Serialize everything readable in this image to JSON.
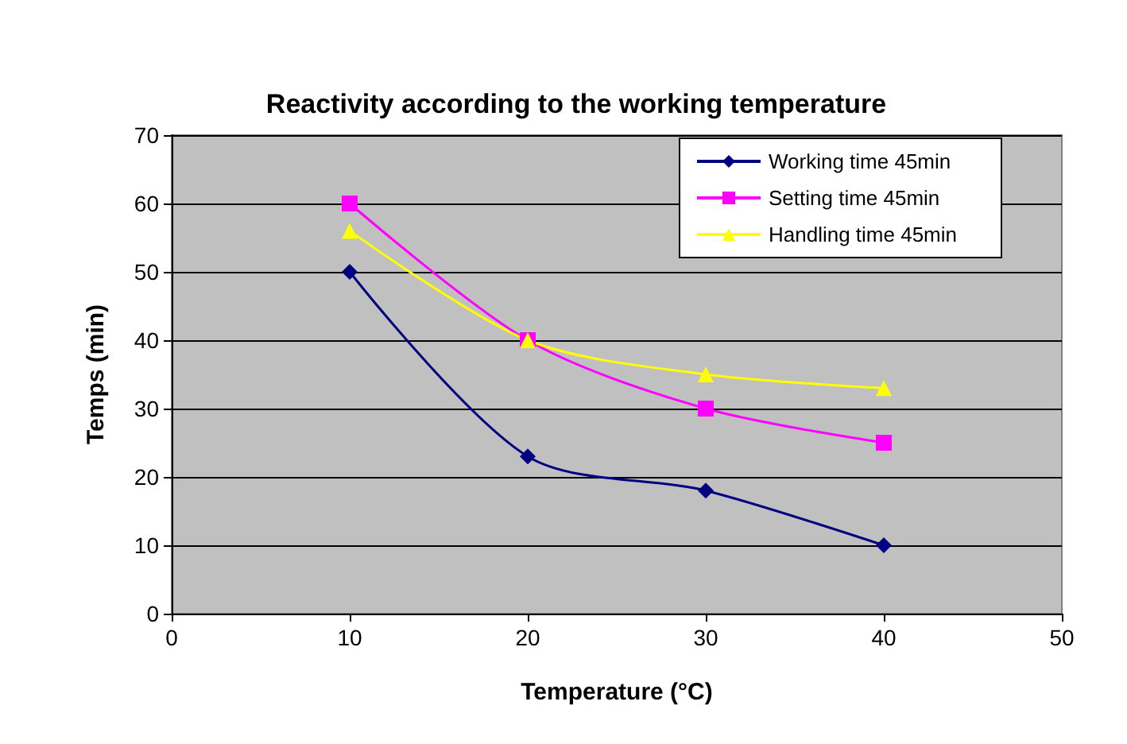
{
  "chart_data": {
    "type": "line",
    "title": "Reactivity according to the working temperature",
    "xlabel": "Temperature (°C)",
    "ylabel": "Temps (min)",
    "x": [
      10,
      20,
      30,
      40
    ],
    "xlim": [
      0,
      50
    ],
    "xticks": [
      0,
      10,
      20,
      30,
      40,
      50
    ],
    "ylim": [
      0,
      70
    ],
    "yticks": [
      0,
      10,
      20,
      30,
      40,
      50,
      60,
      70
    ],
    "grid": "y",
    "legend": "top right",
    "series": [
      {
        "name": "Working time 45min",
        "color": "#000080",
        "marker": "diamond",
        "values": [
          50,
          23,
          18,
          10
        ]
      },
      {
        "name": "Setting time 45min",
        "color": "#ff00ff",
        "marker": "square",
        "values": [
          60,
          40,
          30,
          25
        ]
      },
      {
        "name": "Handling time 45min",
        "color": "#ffff00",
        "marker": "triangle",
        "values": [
          56,
          40,
          35,
          33
        ]
      }
    ]
  }
}
